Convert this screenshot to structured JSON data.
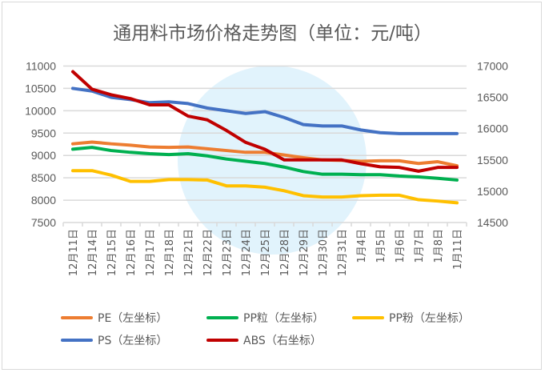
{
  "chart_data": {
    "type": "line",
    "title": "通用料市场价格走势图（单位：元/吨）",
    "categories": [
      "12月11日",
      "12月14日",
      "12月15日",
      "12月16日",
      "12月17日",
      "12月18日",
      "12月21日",
      "12月22日",
      "12月23日",
      "12月24日",
      "12月25日",
      "12月28日",
      "12月29日",
      "12月30日",
      "12月31日",
      "1月4日",
      "1月5日",
      "1月6日",
      "1月7日",
      "1月8日",
      "1月11日"
    ],
    "left_axis": {
      "ylim": [
        7500,
        11000
      ],
      "ticks": [
        7500,
        8000,
        8500,
        9000,
        9500,
        10000,
        10500,
        11000
      ]
    },
    "right_axis": {
      "ylim": [
        14500,
        17000
      ],
      "ticks": [
        14500,
        15000,
        15500,
        16000,
        16500,
        17000
      ]
    },
    "grid": true,
    "legend_position": "bottom",
    "series": [
      {
        "name": "PE（左坐标）",
        "axis": "left",
        "color": "#ED7D31",
        "values": [
          9260,
          9300,
          9260,
          9230,
          9190,
          9180,
          9190,
          9150,
          9110,
          9070,
          9070,
          9010,
          8950,
          8900,
          8890,
          8870,
          8880,
          8880,
          8820,
          8860,
          8770
        ]
      },
      {
        "name": "PP粒（左坐标）",
        "axis": "left",
        "color": "#00B050",
        "values": [
          9140,
          9180,
          9110,
          9070,
          9040,
          9020,
          9040,
          8990,
          8920,
          8870,
          8820,
          8740,
          8640,
          8580,
          8580,
          8570,
          8570,
          8540,
          8520,
          8490,
          8450
        ]
      },
      {
        "name": "PP粉（左坐标）",
        "axis": "left",
        "color": "#FFC000",
        "values": [
          8660,
          8660,
          8560,
          8420,
          8420,
          8460,
          8460,
          8450,
          8320,
          8320,
          8290,
          8210,
          8100,
          8070,
          8070,
          8100,
          8110,
          8110,
          8010,
          7980,
          7940
        ]
      },
      {
        "name": "PS（左坐标）",
        "axis": "left",
        "color": "#4472C4",
        "values": [
          10500,
          10440,
          10300,
          10250,
          10180,
          10200,
          10160,
          10060,
          10000,
          9940,
          9980,
          9850,
          9690,
          9660,
          9660,
          9570,
          9510,
          9490,
          9490,
          9490,
          9490
        ]
      },
      {
        "name": "ABS（右坐标）",
        "axis": "right",
        "color": "#C00000",
        "values": [
          16910,
          16630,
          16540,
          16480,
          16380,
          16380,
          16200,
          16140,
          15970,
          15780,
          15670,
          15500,
          15500,
          15500,
          15500,
          15440,
          15390,
          15380,
          15320,
          15380,
          15380
        ]
      }
    ]
  }
}
